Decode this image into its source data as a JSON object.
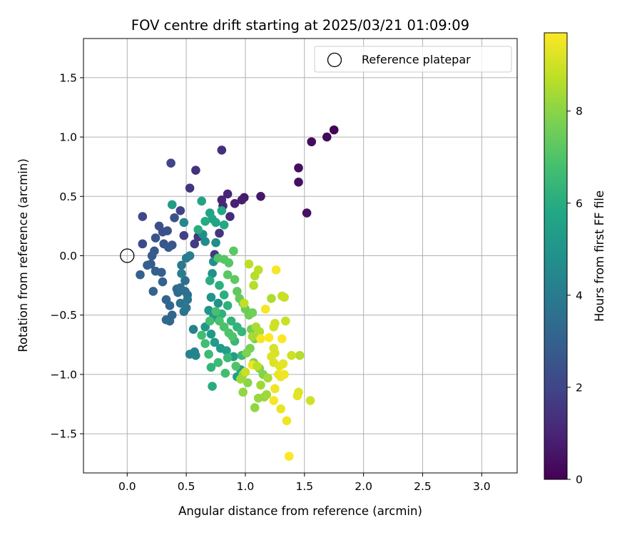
{
  "chart_data": {
    "type": "scatter",
    "title": "FOV centre drift starting at 2025/03/21 01:09:09",
    "xlabel": "Angular distance from reference (arcmin)",
    "ylabel": "Rotation from reference (arcmin)",
    "xlim": [
      -0.37,
      3.3
    ],
    "ylim": [
      -1.83,
      1.83
    ],
    "xticks": [
      0.0,
      0.5,
      1.0,
      1.5,
      2.0,
      2.5,
      3.0
    ],
    "xtick_labels": [
      "0.0",
      "0.5",
      "1.0",
      "1.5",
      "2.0",
      "2.5",
      "3.0"
    ],
    "yticks": [
      1.5,
      1.0,
      0.5,
      0.0,
      -0.5,
      -1.0,
      -1.5
    ],
    "ytick_labels": [
      "1.5",
      "1.0",
      "0.5",
      "0.0",
      "−0.5",
      "−1.0",
      "−1.5"
    ],
    "grid": true,
    "colormap": "viridis",
    "colorbar": {
      "label": "Hours from first FF file",
      "min": 0,
      "max": 9.7,
      "ticks": [
        0,
        2,
        4,
        6,
        8
      ],
      "tick_labels": [
        "0",
        "2",
        "4",
        "6",
        "8"
      ]
    },
    "legend": {
      "position": "top-right",
      "entries": [
        "Reference platepar"
      ]
    },
    "reference_point": {
      "x": 0.0,
      "y": 0.0
    },
    "series": [
      {
        "points": [
          [
            1.75,
            1.06,
            0.1
          ],
          [
            1.69,
            1.0,
            0.2
          ],
          [
            1.56,
            0.96,
            0.3
          ],
          [
            1.45,
            0.74,
            0.35
          ],
          [
            1.45,
            0.62,
            0.4
          ],
          [
            1.52,
            0.36,
            0.45
          ],
          [
            1.13,
            0.5,
            0.6
          ],
          [
            0.99,
            0.49,
            0.7
          ],
          [
            0.97,
            0.47,
            0.8
          ],
          [
            0.91,
            0.44,
            0.9
          ],
          [
            0.85,
            0.52,
            1.0
          ],
          [
            0.8,
            0.47,
            1.0
          ],
          [
            0.81,
            0.42,
            1.1
          ],
          [
            0.87,
            0.33,
            1.2
          ],
          [
            0.8,
            0.89,
            1.3
          ],
          [
            0.58,
            0.72,
            1.4
          ],
          [
            0.53,
            0.57,
            1.5
          ],
          [
            0.78,
            0.19,
            1.5
          ],
          [
            0.74,
            0.01,
            1.6
          ],
          [
            0.6,
            0.16,
            1.6
          ],
          [
            0.57,
            0.1,
            1.7
          ],
          [
            0.48,
            0.17,
            1.8
          ],
          [
            0.45,
            0.38,
            1.9
          ],
          [
            0.37,
            0.78,
            2.0
          ],
          [
            0.13,
            0.33,
            2.1
          ],
          [
            0.13,
            0.1,
            2.2
          ],
          [
            0.27,
            0.25,
            2.3
          ],
          [
            0.3,
            0.2,
            2.3
          ],
          [
            0.34,
            0.21,
            2.4
          ],
          [
            0.4,
            0.32,
            2.5
          ],
          [
            0.24,
            0.15,
            2.5
          ],
          [
            0.31,
            0.1,
            2.6
          ],
          [
            0.38,
            0.09,
            2.6
          ],
          [
            0.35,
            0.07,
            2.7
          ],
          [
            0.23,
            0.04,
            2.7
          ],
          [
            0.21,
            0.0,
            2.8
          ],
          [
            0.2,
            -0.07,
            2.8
          ],
          [
            0.29,
            -0.14,
            2.9
          ],
          [
            0.24,
            -0.13,
            2.9
          ],
          [
            0.17,
            -0.08,
            2.9
          ],
          [
            0.11,
            -0.16,
            3.0
          ],
          [
            0.3,
            -0.22,
            3.0
          ],
          [
            0.22,
            -0.3,
            3.1
          ],
          [
            0.33,
            -0.37,
            3.1
          ],
          [
            0.36,
            -0.42,
            3.2
          ],
          [
            0.38,
            -0.5,
            3.2
          ],
          [
            0.33,
            -0.54,
            3.3
          ],
          [
            0.36,
            -0.55,
            3.3
          ],
          [
            0.43,
            -0.31,
            3.4
          ],
          [
            0.42,
            -0.28,
            3.4
          ],
          [
            0.45,
            -0.27,
            3.5
          ],
          [
            0.49,
            -0.21,
            3.5
          ],
          [
            0.49,
            -0.3,
            3.6
          ],
          [
            0.51,
            -0.33,
            3.6
          ],
          [
            0.45,
            -0.4,
            3.7
          ],
          [
            0.48,
            -0.47,
            3.7
          ],
          [
            0.5,
            -0.44,
            3.8
          ],
          [
            0.51,
            -0.37,
            3.8
          ],
          [
            0.46,
            -0.08,
            3.9
          ],
          [
            0.5,
            -0.02,
            4.0
          ],
          [
            0.53,
            0.0,
            4.1
          ],
          [
            0.46,
            -0.15,
            4.1
          ],
          [
            0.56,
            -0.62,
            4.2
          ],
          [
            0.53,
            -0.83,
            4.3
          ],
          [
            0.57,
            -0.81,
            4.3
          ],
          [
            0.58,
            -0.84,
            4.4
          ],
          [
            0.48,
            0.28,
            4.5
          ],
          [
            0.66,
            0.12,
            4.6
          ],
          [
            0.64,
            0.18,
            4.7
          ],
          [
            0.75,
            0.11,
            4.7
          ],
          [
            0.73,
            -0.05,
            4.8
          ],
          [
            0.72,
            -0.15,
            4.9
          ],
          [
            0.71,
            -0.35,
            4.9
          ],
          [
            0.77,
            -0.4,
            5.0
          ],
          [
            0.69,
            -0.46,
            5.0
          ],
          [
            0.73,
            -0.52,
            5.1
          ],
          [
            0.66,
            -0.6,
            5.1
          ],
          [
            0.71,
            -0.66,
            5.2
          ],
          [
            0.74,
            -0.73,
            5.3
          ],
          [
            0.79,
            -0.78,
            5.3
          ],
          [
            0.84,
            -0.8,
            5.4
          ],
          [
            0.9,
            -0.85,
            5.4
          ],
          [
            0.93,
            -1.02,
            5.5
          ],
          [
            0.96,
            -0.96,
            5.5
          ],
          [
            0.38,
            0.43,
            5.4
          ],
          [
            0.63,
            0.46,
            5.6
          ],
          [
            0.7,
            0.36,
            5.6
          ],
          [
            0.75,
            0.28,
            5.7
          ],
          [
            0.72,
            0.31,
            5.7
          ],
          [
            0.82,
            0.26,
            5.8
          ],
          [
            0.8,
            0.38,
            5.8
          ],
          [
            0.66,
            0.29,
            5.9
          ],
          [
            0.6,
            0.22,
            6.0
          ],
          [
            0.7,
            -0.21,
            6.0
          ],
          [
            0.78,
            -0.25,
            6.1
          ],
          [
            0.82,
            -0.33,
            6.1
          ],
          [
            0.85,
            -0.42,
            6.2
          ],
          [
            0.8,
            -0.49,
            6.2
          ],
          [
            0.88,
            -0.55,
            6.3
          ],
          [
            0.93,
            -0.6,
            6.3
          ],
          [
            0.97,
            -0.64,
            6.4
          ],
          [
            0.91,
            -0.72,
            6.4
          ],
          [
            0.97,
            -0.84,
            6.5
          ],
          [
            0.85,
            -0.86,
            6.5
          ],
          [
            0.77,
            -0.9,
            6.6
          ],
          [
            0.69,
            -0.83,
            6.6
          ],
          [
            0.66,
            -0.74,
            6.7
          ],
          [
            0.63,
            -0.67,
            6.7
          ],
          [
            0.7,
            -0.55,
            6.8
          ],
          [
            0.75,
            -0.47,
            6.8
          ],
          [
            0.78,
            -0.55,
            6.9
          ],
          [
            0.82,
            -0.6,
            6.9
          ],
          [
            0.86,
            -0.65,
            7.0
          ],
          [
            0.89,
            -0.68,
            7.0
          ],
          [
            0.72,
            -1.1,
            6.0
          ],
          [
            0.71,
            -0.94,
            6.3
          ],
          [
            0.83,
            -0.99,
            6.7
          ],
          [
            0.92,
            -0.93,
            7.0
          ],
          [
            0.77,
            -0.02,
            7.0
          ],
          [
            0.82,
            -0.03,
            7.1
          ],
          [
            0.86,
            -0.06,
            7.1
          ],
          [
            0.9,
            0.04,
            7.2
          ],
          [
            0.85,
            -0.16,
            7.2
          ],
          [
            0.91,
            -0.2,
            7.3
          ],
          [
            0.93,
            -0.3,
            7.3
          ],
          [
            0.95,
            -0.36,
            7.4
          ],
          [
            0.98,
            -0.4,
            7.4
          ],
          [
            1.0,
            -0.45,
            7.5
          ],
          [
            1.03,
            -0.5,
            7.5
          ],
          [
            1.06,
            -0.48,
            7.6
          ],
          [
            1.05,
            -0.62,
            7.6
          ],
          [
            1.08,
            -0.7,
            7.7
          ],
          [
            1.04,
            -0.78,
            7.7
          ],
          [
            1.01,
            -0.82,
            7.8
          ],
          [
            1.07,
            -0.9,
            7.8
          ],
          [
            1.12,
            -0.95,
            7.9
          ],
          [
            1.15,
            -1.0,
            7.9
          ],
          [
            0.98,
            -1.0,
            8.0
          ],
          [
            1.02,
            -1.07,
            8.0
          ],
          [
            0.98,
            -1.15,
            8.1
          ],
          [
            1.08,
            -1.28,
            8.1
          ],
          [
            1.11,
            -1.2,
            8.2
          ],
          [
            1.16,
            -1.19,
            8.2
          ],
          [
            1.18,
            -1.17,
            8.3
          ],
          [
            1.13,
            -1.09,
            8.3
          ],
          [
            1.19,
            -1.03,
            8.4
          ],
          [
            1.06,
            -0.68,
            8.4
          ],
          [
            1.09,
            -0.6,
            8.5
          ],
          [
            1.12,
            -0.64,
            8.5
          ],
          [
            1.22,
            -0.36,
            8.5
          ],
          [
            1.07,
            -0.25,
            8.6
          ],
          [
            1.08,
            -0.17,
            8.6
          ],
          [
            1.11,
            -0.12,
            8.7
          ],
          [
            1.03,
            -0.07,
            8.7
          ],
          [
            0.99,
            -0.4,
            8.8
          ],
          [
            1.31,
            -0.34,
            8.8
          ],
          [
            1.33,
            -0.35,
            8.9
          ],
          [
            1.34,
            -0.55,
            8.9
          ],
          [
            1.24,
            -0.6,
            9.0
          ],
          [
            1.25,
            -0.57,
            9.0
          ],
          [
            1.24,
            -0.78,
            9.1
          ],
          [
            1.25,
            -0.82,
            9.1
          ],
          [
            1.22,
            -0.85,
            9.2
          ],
          [
            1.24,
            -0.9,
            9.2
          ],
          [
            1.29,
            -0.93,
            9.3
          ],
          [
            1.32,
            -0.91,
            9.3
          ],
          [
            1.28,
            -1.0,
            9.4
          ],
          [
            1.3,
            -1.02,
            9.4
          ],
          [
            1.33,
            -1.0,
            9.5
          ],
          [
            1.25,
            -1.12,
            9.5
          ],
          [
            1.24,
            -1.22,
            9.6
          ],
          [
            1.17,
            -0.45,
            9.6
          ],
          [
            1.26,
            -0.12,
            9.6
          ],
          [
            1.13,
            -0.7,
            9.6
          ],
          [
            1.2,
            -0.69,
            9.7
          ],
          [
            1.31,
            -0.7,
            9.7
          ],
          [
            1.46,
            -0.84,
            8.6
          ],
          [
            1.39,
            -0.84,
            9.0
          ],
          [
            1.45,
            -1.15,
            9.2
          ],
          [
            1.44,
            -1.18,
            9.3
          ],
          [
            1.55,
            -1.22,
            9.0
          ],
          [
            1.3,
            -1.29,
            9.4
          ],
          [
            1.35,
            -1.39,
            9.5
          ],
          [
            1.37,
            -1.69,
            9.7
          ],
          [
            1.06,
            -0.92,
            9.5
          ],
          [
            1.0,
            -0.98,
            8.9
          ],
          [
            0.96,
            -1.04,
            8.3
          ],
          [
            1.1,
            -0.93,
            8.7
          ]
        ]
      }
    ]
  }
}
